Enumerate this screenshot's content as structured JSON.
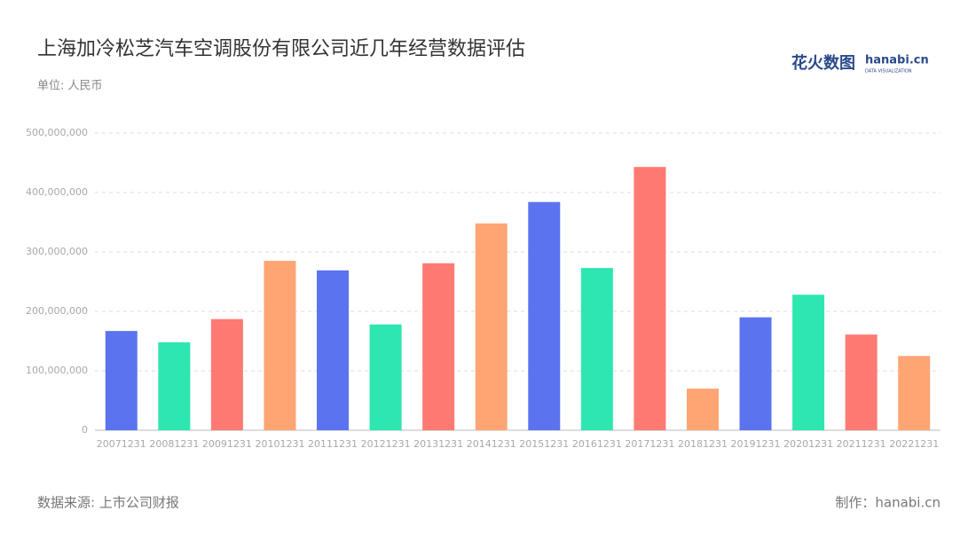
{
  "chart_data": {
    "type": "bar",
    "title": "上海加冷松芝汽车空调股份有限公司近几年经营数据评估",
    "subtitle": "单位: 人民币",
    "source": "数据来源: 上市公司财报",
    "credit": "制作：hanabi.cn",
    "logo": {
      "name": "花火数图",
      "site": "hanabi.cn",
      "tagline": "DATA VISUALIZATION"
    },
    "categories": [
      "20071231",
      "20081231",
      "20091231",
      "20101231",
      "20111231",
      "20121231",
      "20131231",
      "20141231",
      "20151231",
      "20161231",
      "20171231",
      "20181231",
      "20191231",
      "20201231",
      "20211231",
      "20221231"
    ],
    "values": [
      167000000,
      148000000,
      187000000,
      285000000,
      269000000,
      178000000,
      281000000,
      348000000,
      384000000,
      273000000,
      443000000,
      70000000,
      190000000,
      228000000,
      161000000,
      125000000
    ],
    "colors": [
      "#5b73ee",
      "#2de6b0",
      "#ff7a72",
      "#ffa574"
    ],
    "ylim": [
      0,
      500000000
    ],
    "yticks": [
      0,
      {
        "value": 100000000,
        "label": "100,000,000"
      },
      {
        "value": 200000000,
        "label": "200,000,000"
      },
      {
        "value": 300000000,
        "label": "300,000,000"
      },
      {
        "value": 400000000,
        "label": "400,000,000"
      },
      {
        "value": 500000000,
        "label": "500,000,000"
      }
    ],
    "grid": true
  }
}
